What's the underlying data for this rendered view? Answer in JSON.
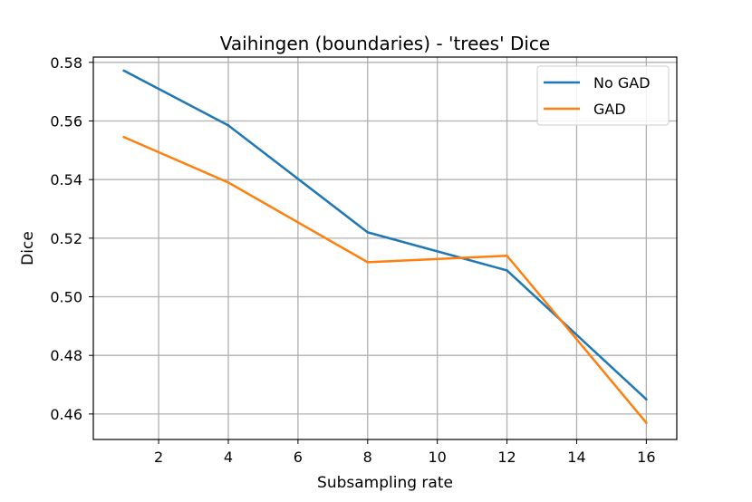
{
  "chart_data": {
    "type": "line",
    "title": "Vaihingen (boundaries) - 'trees' Dice",
    "xlabel": "Subsampling rate",
    "ylabel": "Dice",
    "x": [
      1,
      4,
      8,
      12,
      16
    ],
    "xlim": [
      0.125,
      16.875
    ],
    "ylim": [
      0.4513,
      0.5818
    ],
    "xticks": [
      2,
      4,
      6,
      8,
      10,
      12,
      14,
      16
    ],
    "yticks": [
      0.46,
      0.48,
      0.5,
      0.52,
      0.54,
      0.56,
      0.58
    ],
    "ytick_labels": [
      "0.46",
      "0.48",
      "0.50",
      "0.52",
      "0.54",
      "0.56",
      "0.58"
    ],
    "grid": true,
    "legend_position": "top-right",
    "series": [
      {
        "name": "No GAD",
        "color": "#1f77b4",
        "values": [
          0.5772,
          0.5585,
          0.522,
          0.509,
          0.465
        ]
      },
      {
        "name": "GAD",
        "color": "#ff7f0e",
        "values": [
          0.5545,
          0.539,
          0.5118,
          0.514,
          0.457
        ]
      }
    ]
  }
}
